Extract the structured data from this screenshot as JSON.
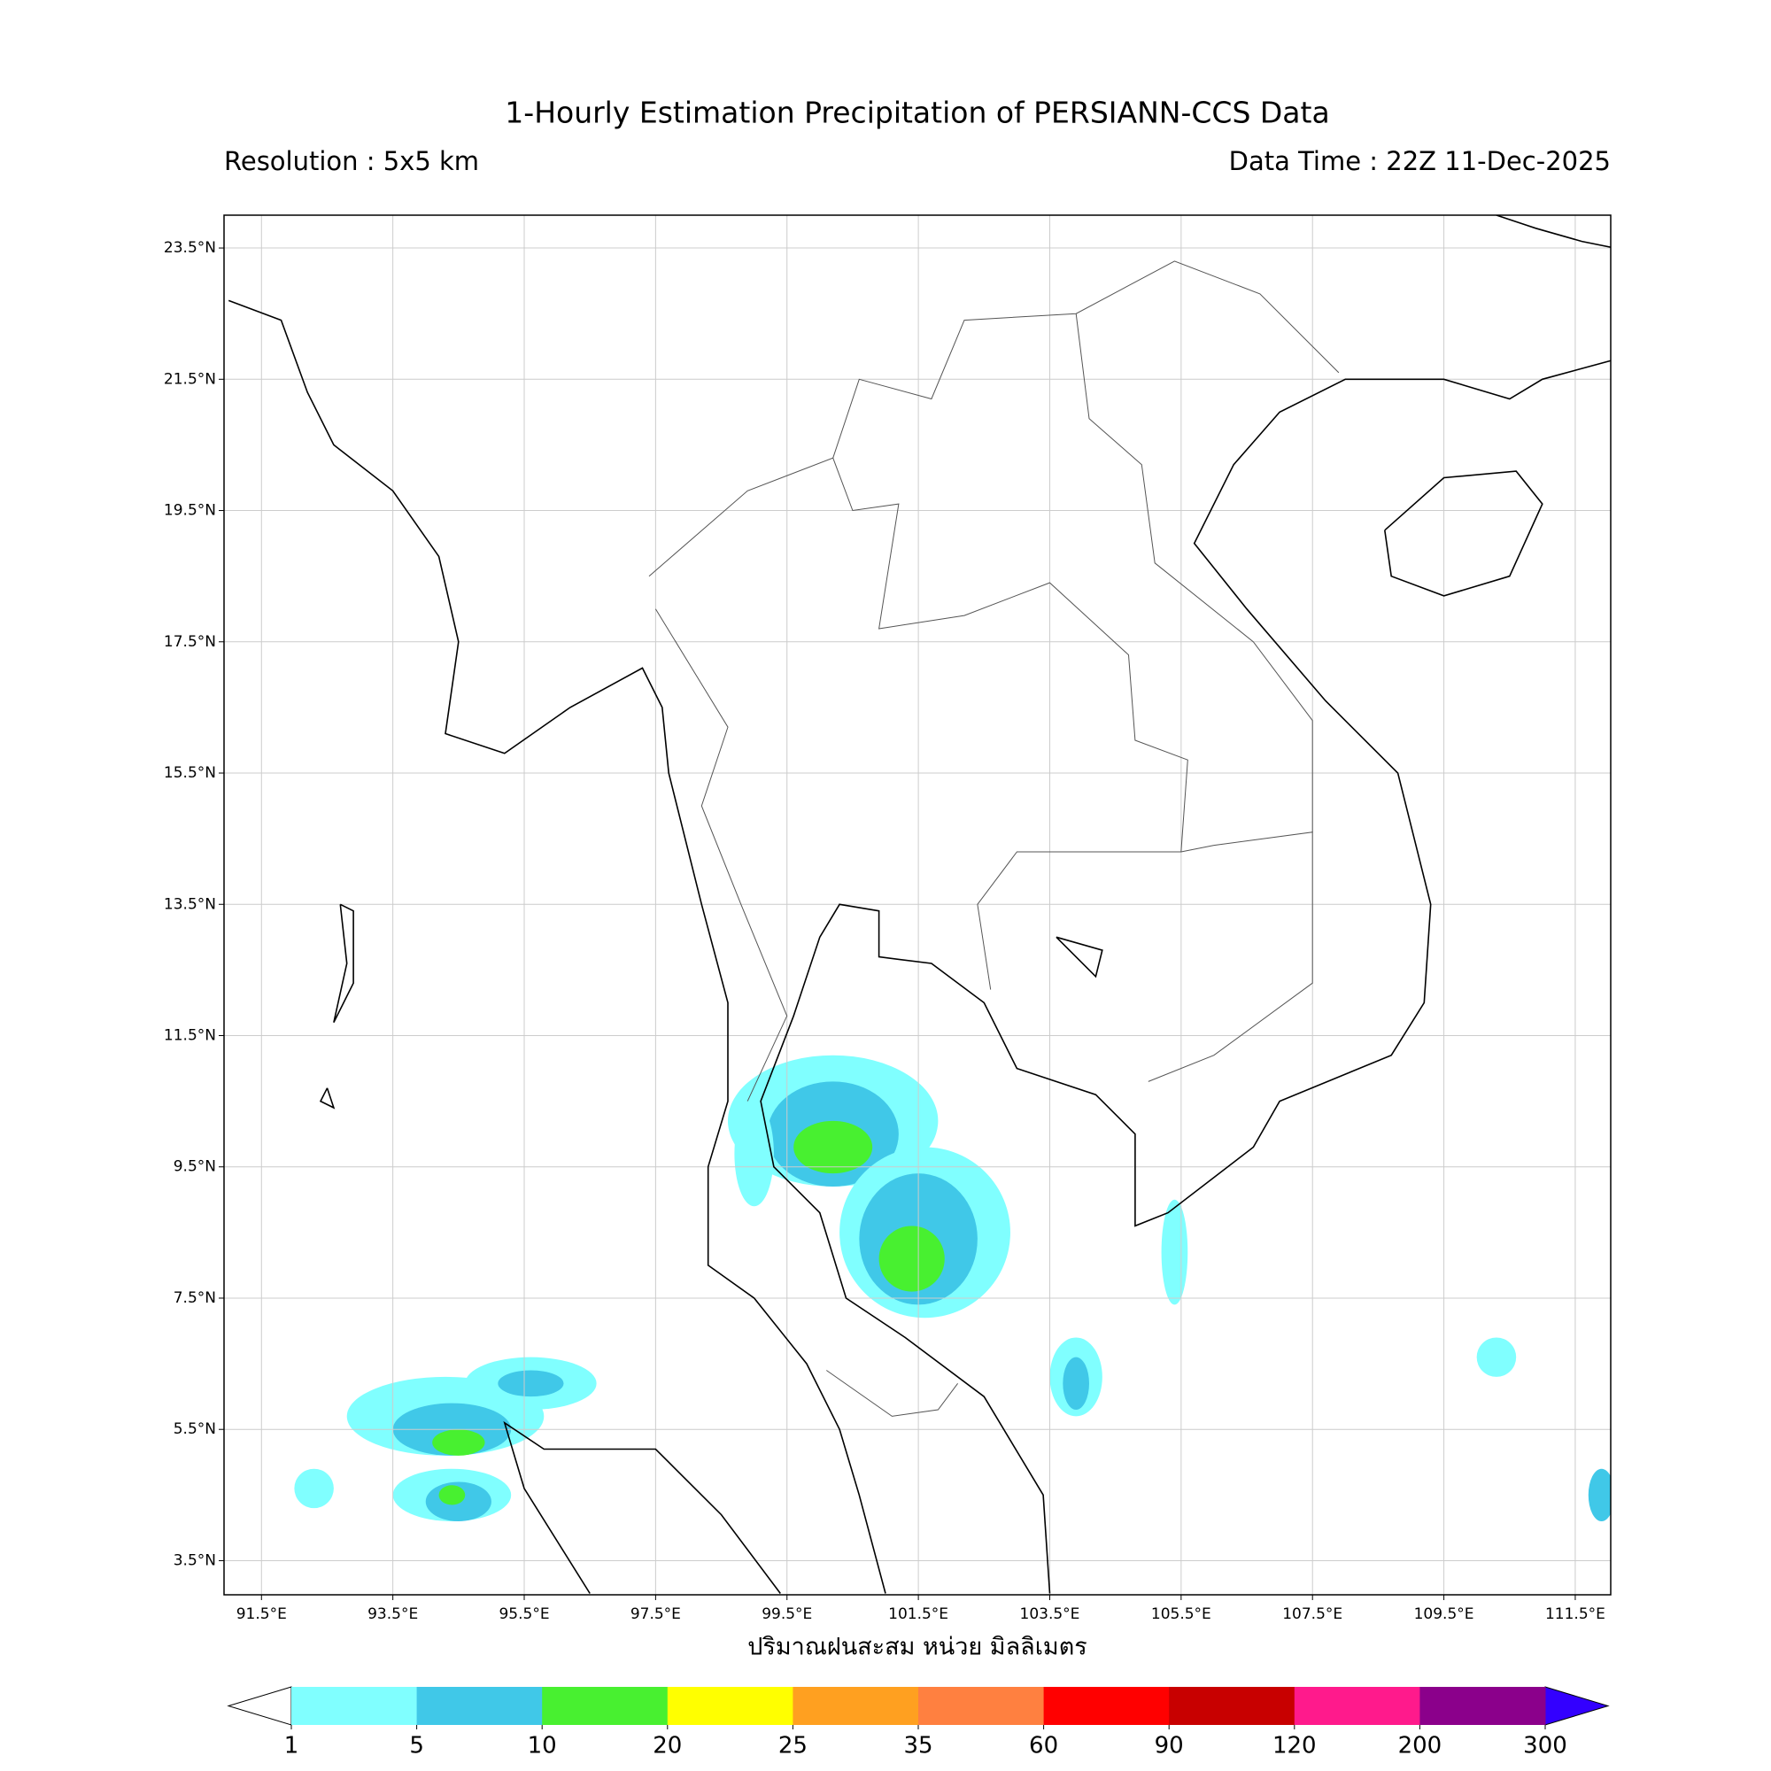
{
  "title": "1-Hourly Estimation Precipitation of PERSIANN-CCS Data",
  "resolution": "Resolution : 5x5 km",
  "data_time": "Data Time : 22Z 11-Dec-2025",
  "map": {
    "xlim": [
      90.93,
      112.04
    ],
    "ylim": [
      2.98,
      24.0
    ],
    "xticks": [
      {
        "value": 91.5,
        "label": "91.5°E"
      },
      {
        "value": 93.5,
        "label": "93.5°E"
      },
      {
        "value": 95.5,
        "label": "95.5°E"
      },
      {
        "value": 97.5,
        "label": "97.5°E"
      },
      {
        "value": 99.5,
        "label": "99.5°E"
      },
      {
        "value": 101.5,
        "label": "101.5°E"
      },
      {
        "value": 103.5,
        "label": "103.5°E"
      },
      {
        "value": 105.5,
        "label": "105.5°E"
      },
      {
        "value": 107.5,
        "label": "107.5°E"
      },
      {
        "value": 109.5,
        "label": "109.5°E"
      },
      {
        "value": 111.5,
        "label": "111.5°E"
      }
    ],
    "yticks": [
      {
        "value": 3.5,
        "label": "3.5°N"
      },
      {
        "value": 5.5,
        "label": "5.5°N"
      },
      {
        "value": 7.5,
        "label": "7.5°N"
      },
      {
        "value": 9.5,
        "label": "9.5°N"
      },
      {
        "value": 11.5,
        "label": "11.5°N"
      },
      {
        "value": 13.5,
        "label": "13.5°N"
      },
      {
        "value": 15.5,
        "label": "15.5°N"
      },
      {
        "value": 17.5,
        "label": "17.5°N"
      },
      {
        "value": 19.5,
        "label": "19.5°N"
      },
      {
        "value": 21.5,
        "label": "21.5°N"
      },
      {
        "value": 23.5,
        "label": "23.5°N"
      }
    ],
    "grid": true
  },
  "colorbar": {
    "label": "ปริมาณฝนสะสม หน่วย มิลลิเมตร",
    "levels": [
      1,
      5,
      10,
      20,
      25,
      35,
      60,
      90,
      120,
      200,
      300
    ],
    "colors": [
      "#80ffff",
      "#40c8e8",
      "#48f030",
      "#ffff00",
      "#ffa020",
      "#ff8040",
      "#ff0000",
      "#c80000",
      "#ff1a8c",
      "#8b008b"
    ],
    "under_color": "#ffffff",
    "over_color": "#3300ff"
  }
}
